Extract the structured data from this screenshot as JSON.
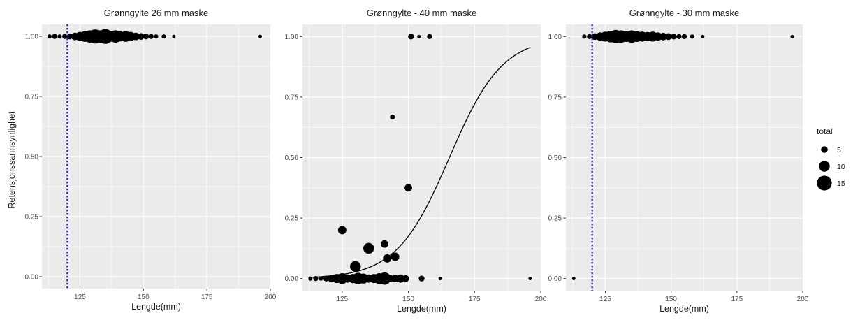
{
  "shared_ylabel": "Retensjonssannsynlighet",
  "legend": {
    "title": "total",
    "sizes": [
      5,
      10,
      15
    ],
    "labels": [
      "5",
      "10",
      "15"
    ]
  },
  "colors": {
    "panel_bg": "#ebebeb",
    "grid": "#ffffff",
    "point": "#000000",
    "ref_line": "#1f1fd0",
    "curve": "#000000",
    "tick_text": "#4d4d4d"
  },
  "chart_data": [
    {
      "type": "scatter",
      "title": "Grønngylte 26 mm maske",
      "xlabel": "Lengde(mm)",
      "ylabel": "Retensjonssannsynlighet",
      "xlim": [
        110,
        200
      ],
      "ylim": [
        -0.05,
        1.05
      ],
      "xticks": [
        125,
        150,
        175,
        200
      ],
      "xtick_labels": [
        "125",
        "150",
        "175",
        "200"
      ],
      "yticks": [
        0,
        0.25,
        0.5,
        0.75,
        1
      ],
      "ytick_labels": [
        "0.00",
        "0.25",
        "0.50",
        "0.75",
        "1.00"
      ],
      "reference_line_x": 120,
      "points": [
        {
          "x": 113,
          "y": 1,
          "total": 2
        },
        {
          "x": 115,
          "y": 1,
          "total": 3
        },
        {
          "x": 117,
          "y": 1,
          "total": 2
        },
        {
          "x": 119,
          "y": 1,
          "total": 3
        },
        {
          "x": 121,
          "y": 1,
          "total": 4
        },
        {
          "x": 123,
          "y": 1,
          "total": 6
        },
        {
          "x": 125,
          "y": 1,
          "total": 8
        },
        {
          "x": 127,
          "y": 1,
          "total": 10
        },
        {
          "x": 129,
          "y": 1,
          "total": 12
        },
        {
          "x": 131,
          "y": 1,
          "total": 14
        },
        {
          "x": 133,
          "y": 1,
          "total": 12
        },
        {
          "x": 135,
          "y": 1,
          "total": 15
        },
        {
          "x": 137,
          "y": 1,
          "total": 10
        },
        {
          "x": 139,
          "y": 1,
          "total": 12
        },
        {
          "x": 141,
          "y": 1,
          "total": 9
        },
        {
          "x": 143,
          "y": 1,
          "total": 10
        },
        {
          "x": 145,
          "y": 1,
          "total": 8
        },
        {
          "x": 147,
          "y": 1,
          "total": 6
        },
        {
          "x": 149,
          "y": 1,
          "total": 5
        },
        {
          "x": 151,
          "y": 1,
          "total": 4
        },
        {
          "x": 153,
          "y": 1,
          "total": 3
        },
        {
          "x": 155,
          "y": 1,
          "total": 2
        },
        {
          "x": 158,
          "y": 1,
          "total": 2
        },
        {
          "x": 162,
          "y": 1,
          "total": 1
        },
        {
          "x": 196,
          "y": 1,
          "total": 1
        }
      ]
    },
    {
      "type": "scatter",
      "title": "Grønngylte - 40 mm maske",
      "xlabel": "Lengde(mm)",
      "ylabel": "",
      "xlim": [
        110,
        200
      ],
      "ylim": [
        -0.05,
        1.05
      ],
      "xticks": [
        125,
        150,
        175,
        200
      ],
      "xtick_labels": [
        "125",
        "150",
        "175",
        "200"
      ],
      "yticks": [
        0,
        0.25,
        0.5,
        0.75,
        1
      ],
      "ytick_labels": [
        "0.00",
        "0.25",
        "0.50",
        "0.75",
        "1.00"
      ],
      "fitted_curve": {
        "type": "logistic",
        "x_range": [
          113,
          196
        ],
        "x50": 165.5,
        "slope": 0.1
      },
      "points": [
        {
          "x": 113,
          "y": 0,
          "total": 2
        },
        {
          "x": 115,
          "y": 0,
          "total": 3
        },
        {
          "x": 117,
          "y": 0,
          "total": 2
        },
        {
          "x": 119,
          "y": 0,
          "total": 4
        },
        {
          "x": 121,
          "y": 0,
          "total": 6
        },
        {
          "x": 123,
          "y": 0,
          "total": 8
        },
        {
          "x": 125,
          "y": 0,
          "total": 10
        },
        {
          "x": 127,
          "y": 0,
          "total": 7
        },
        {
          "x": 129,
          "y": 0,
          "total": 8
        },
        {
          "x": 131,
          "y": 0,
          "total": 11
        },
        {
          "x": 133,
          "y": 0,
          "total": 9
        },
        {
          "x": 135,
          "y": 0,
          "total": 7
        },
        {
          "x": 137,
          "y": 0,
          "total": 8
        },
        {
          "x": 139,
          "y": 0,
          "total": 10
        },
        {
          "x": 141,
          "y": 0,
          "total": 12
        },
        {
          "x": 143,
          "y": 0,
          "total": 6
        },
        {
          "x": 145,
          "y": 0,
          "total": 6
        },
        {
          "x": 147,
          "y": 0,
          "total": 7
        },
        {
          "x": 149,
          "y": 0,
          "total": 5
        },
        {
          "x": 155,
          "y": 0,
          "total": 4
        },
        {
          "x": 162,
          "y": 0,
          "total": 1
        },
        {
          "x": 196,
          "y": 0,
          "total": 1
        },
        {
          "x": 125,
          "y": 0.2,
          "total": 7
        },
        {
          "x": 130,
          "y": 0.05,
          "total": 10
        },
        {
          "x": 135,
          "y": 0.125,
          "total": 10
        },
        {
          "x": 141,
          "y": 0.143,
          "total": 6
        },
        {
          "x": 142,
          "y": 0.083,
          "total": 7
        },
        {
          "x": 145,
          "y": 0.09,
          "total": 7
        },
        {
          "x": 144,
          "y": 0.667,
          "total": 3
        },
        {
          "x": 150,
          "y": 0.375,
          "total": 6
        },
        {
          "x": 151,
          "y": 1,
          "total": 4
        },
        {
          "x": 154,
          "y": 1,
          "total": 1
        },
        {
          "x": 158,
          "y": 1,
          "total": 3
        }
      ]
    },
    {
      "type": "scatter",
      "title": "Grønngylte - 30 mm maske",
      "xlabel": "Lengde(mm)",
      "ylabel": "",
      "xlim": [
        110,
        200
      ],
      "ylim": [
        -0.05,
        1.05
      ],
      "xticks": [
        125,
        150,
        175,
        200
      ],
      "xtick_labels": [
        "125",
        "150",
        "175",
        "200"
      ],
      "yticks": [
        0,
        0.25,
        0.5,
        0.75,
        1
      ],
      "ytick_labels": [
        "0.00",
        "0.25",
        "0.50",
        "0.75",
        "1.00"
      ],
      "reference_line_x": 120,
      "points": [
        {
          "x": 113,
          "y": 0,
          "total": 1
        },
        {
          "x": 117,
          "y": 1,
          "total": 2
        },
        {
          "x": 119,
          "y": 1,
          "total": 3
        },
        {
          "x": 121,
          "y": 1,
          "total": 5
        },
        {
          "x": 123,
          "y": 1,
          "total": 7
        },
        {
          "x": 125,
          "y": 1,
          "total": 9
        },
        {
          "x": 127,
          "y": 1,
          "total": 11
        },
        {
          "x": 129,
          "y": 1,
          "total": 13
        },
        {
          "x": 131,
          "y": 1,
          "total": 12
        },
        {
          "x": 133,
          "y": 1,
          "total": 10
        },
        {
          "x": 135,
          "y": 1,
          "total": 12
        },
        {
          "x": 137,
          "y": 1,
          "total": 10
        },
        {
          "x": 139,
          "y": 1,
          "total": 9
        },
        {
          "x": 141,
          "y": 1,
          "total": 8
        },
        {
          "x": 143,
          "y": 1,
          "total": 9
        },
        {
          "x": 145,
          "y": 1,
          "total": 7
        },
        {
          "x": 147,
          "y": 1,
          "total": 6
        },
        {
          "x": 149,
          "y": 1,
          "total": 5
        },
        {
          "x": 151,
          "y": 1,
          "total": 4
        },
        {
          "x": 153,
          "y": 1,
          "total": 3
        },
        {
          "x": 155,
          "y": 1,
          "total": 3
        },
        {
          "x": 158,
          "y": 1,
          "total": 2
        },
        {
          "x": 162,
          "y": 1,
          "total": 1
        },
        {
          "x": 196,
          "y": 1,
          "total": 1
        }
      ]
    }
  ]
}
